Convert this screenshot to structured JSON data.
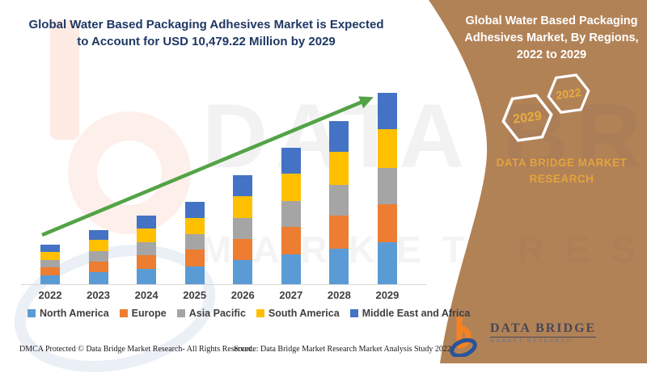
{
  "colors": {
    "panel_brown": "#B28257",
    "title_navy": "#1F3864",
    "gold": "#E2A33D",
    "arrow_green": "#53A346",
    "axis_gray": "#D9D9D9"
  },
  "header": {
    "title": "Global Water Based Packaging Adhesives Market is Expected to Account for USD 10,479.22 Million by 2029"
  },
  "right_panel": {
    "title": "Global Water Based Packaging Adhesives Market, By Regions, 2022 to 2029",
    "hexagon_back_label": "2029",
    "hexagon_front_label": "2022",
    "brand_text": "DATA BRIDGE MARKET RESEARCH",
    "logo_wordmark": "DATA BRIDGE",
    "logo_subtext": "MARKET RESEARCH"
  },
  "watermark": {
    "line1": "DATA BRIDGE",
    "line2": "MARKET RESEARCH"
  },
  "footer": {
    "dmca": "DMCA Protected © Data Bridge Market Research- All Rights Reserved.",
    "source": "Source: Data Bridge Market Research Market Analysis Study 2022"
  },
  "chart_data": {
    "type": "bar",
    "stacked": true,
    "title": "Global Water Based Packaging Adhesives Market is Expected to Account for USD 10,479.22 Million by 2029",
    "xlabel": "",
    "ylabel": "",
    "unit": "USD Million",
    "gridlines": false,
    "legend_position": "bottom",
    "trend_arrow": true,
    "categories": [
      "2022",
      "2023",
      "2024",
      "2025",
      "2026",
      "2027",
      "2028",
      "2029"
    ],
    "totals_estimated": [
      2190,
      2980,
      3760,
      4500,
      5950,
      7500,
      8940,
      10479.22
    ],
    "max_total": 10479.22,
    "series": [
      {
        "name": "North America",
        "color": "#5B9BD5",
        "values": [
          481.8,
          655.6,
          827.2,
          990.0,
          1309.0,
          1650.0,
          1966.8,
          2305.4
        ]
      },
      {
        "name": "Europe",
        "color": "#ED7D31",
        "values": [
          438.0,
          596.0,
          752.0,
          900.0,
          1190.0,
          1500.0,
          1788.0,
          2095.8
        ]
      },
      {
        "name": "Asia Pacific",
        "color": "#A5A5A5",
        "values": [
          416.1,
          566.2,
          714.4,
          855.0,
          1130.5,
          1425.0,
          1698.6,
          1991.1
        ]
      },
      {
        "name": "South America",
        "color": "#FFC000",
        "values": [
          438.0,
          596.0,
          752.0,
          900.0,
          1190.0,
          1500.0,
          1788.0,
          2095.8
        ]
      },
      {
        "name": "Middle East and Africa",
        "color": "#4472C4",
        "values": [
          416.1,
          566.2,
          714.4,
          855.0,
          1130.5,
          1425.0,
          1698.6,
          1991.1
        ]
      }
    ]
  }
}
